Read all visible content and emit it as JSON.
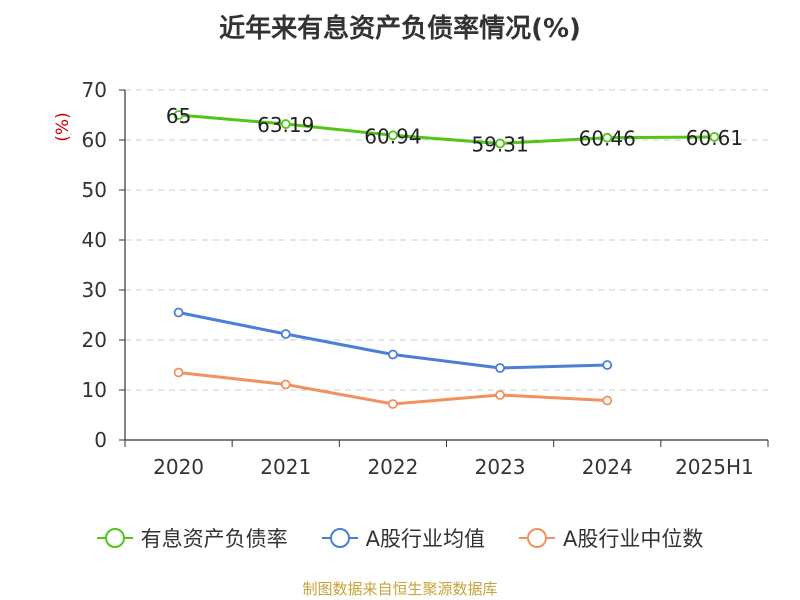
{
  "title": "近年来有息资产负债率情况(%)",
  "source": "制图数据来自恒生聚源数据库",
  "chart_data": {
    "type": "line",
    "title": "近年来有息资产负债率情况(%)",
    "ylabel": "(%)",
    "xlabel": "",
    "categories": [
      "2020",
      "2021",
      "2022",
      "2023",
      "2024",
      "2025H1"
    ],
    "ylim": [
      0,
      70
    ],
    "yticks": [
      0,
      10,
      20,
      30,
      40,
      50,
      60,
      70
    ],
    "grid": true,
    "legend": "bottom",
    "series": [
      {
        "name": "有息资产负债率",
        "color": "#52c41a",
        "values": [
          65,
          63.19,
          60.94,
          59.31,
          60.46,
          60.61
        ],
        "labels": [
          "65",
          "63.19",
          "60.94",
          "59.31",
          "60.46",
          "60.61"
        ]
      },
      {
        "name": "A股行业均值",
        "color": "#4a7fd8",
        "values": [
          25.5,
          21.2,
          17.1,
          14.4,
          15.0,
          null
        ]
      },
      {
        "name": "A股行业中位数",
        "color": "#f39060",
        "values": [
          13.5,
          11.1,
          7.2,
          9.0,
          7.9,
          null
        ]
      }
    ]
  }
}
